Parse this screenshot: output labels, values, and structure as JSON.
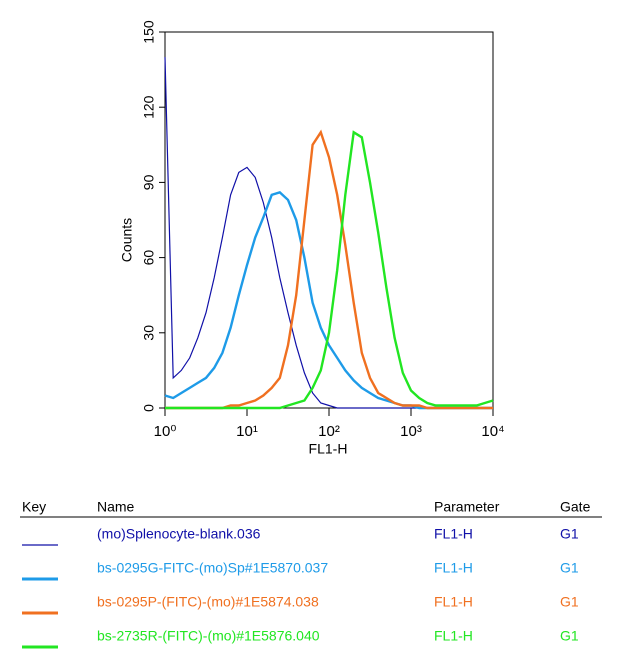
{
  "chart_data": {
    "type": "line",
    "xscale": "log",
    "x_label": "FL1-H",
    "y_label": "Counts",
    "xlim": [
      1,
      10000
    ],
    "ylim": [
      0,
      150
    ],
    "xticks": [
      {
        "value": 1,
        "label": "10⁰"
      },
      {
        "value": 10,
        "label": "10¹"
      },
      {
        "value": 100,
        "label": "10²"
      },
      {
        "value": 1000,
        "label": "10³"
      },
      {
        "value": 10000,
        "label": "10⁴"
      }
    ],
    "yticks": [
      0,
      30,
      60,
      90,
      120,
      150
    ],
    "x": [
      1,
      1.26,
      1.58,
      2,
      2.51,
      3.16,
      3.98,
      5.01,
      6.31,
      7.94,
      10,
      12.6,
      15.8,
      20,
      25.1,
      31.6,
      39.8,
      50.1,
      63.1,
      79.4,
      100,
      126,
      158,
      200,
      251,
      316,
      398,
      501,
      631,
      794,
      1000,
      1260,
      1580,
      2000,
      2510,
      3160,
      3980,
      5010,
      6310,
      7940,
      10000
    ],
    "series": [
      {
        "name": "(mo)Splenocyte-blank.036",
        "color": "#1010a8",
        "values": [
          140,
          12,
          15,
          20,
          28,
          38,
          52,
          68,
          85,
          94,
          96,
          92,
          82,
          68,
          52,
          38,
          25,
          14,
          6,
          2,
          1,
          0,
          0,
          0,
          0,
          0,
          0,
          0,
          0,
          0,
          0,
          0,
          0,
          0,
          0,
          0,
          0,
          0,
          0,
          0,
          0
        ]
      },
      {
        "name": "bs-0295G-FITC-(mo)Sp#1E5870.037",
        "color": "#1e9be8",
        "values": [
          5,
          4,
          6,
          8,
          10,
          12,
          16,
          22,
          32,
          45,
          57,
          68,
          76,
          85,
          86,
          83,
          75,
          60,
          42,
          32,
          25,
          20,
          15,
          11,
          8,
          6,
          4,
          3,
          2,
          1,
          1,
          0,
          0,
          0,
          0,
          0,
          0,
          0,
          0,
          0,
          0
        ]
      },
      {
        "name": "bs-0295P-(FITC)-(mo)#1E5874.038",
        "color": "#f07020",
        "values": [
          0,
          0,
          0,
          0,
          0,
          0,
          0,
          0,
          1,
          1,
          2,
          3,
          5,
          8,
          12,
          25,
          45,
          75,
          105,
          110,
          100,
          85,
          65,
          42,
          22,
          12,
          6,
          4,
          2,
          1,
          1,
          1,
          0,
          0,
          0,
          0,
          0,
          0,
          0,
          0,
          0
        ]
      },
      {
        "name": "bs-2735R-(FITC)-(mo)#1E5876.040",
        "color": "#22e622",
        "values": [
          0,
          0,
          0,
          0,
          0,
          0,
          0,
          0,
          0,
          0,
          0,
          0,
          0,
          0,
          0,
          1,
          2,
          3,
          8,
          15,
          30,
          55,
          85,
          110,
          108,
          90,
          70,
          48,
          28,
          14,
          7,
          4,
          2,
          1,
          1,
          1,
          1,
          1,
          1,
          2,
          3
        ]
      }
    ]
  },
  "key": {
    "headers": [
      "Key",
      "Name",
      "Parameter",
      "Gate"
    ],
    "rows": [
      {
        "parameter": "FL1-H",
        "gate": "G1"
      },
      {
        "parameter": "FL1-H",
        "gate": "G1"
      },
      {
        "parameter": "FL1-H",
        "gate": "G1"
      },
      {
        "parameter": "FL1-H",
        "gate": "G1"
      }
    ]
  }
}
